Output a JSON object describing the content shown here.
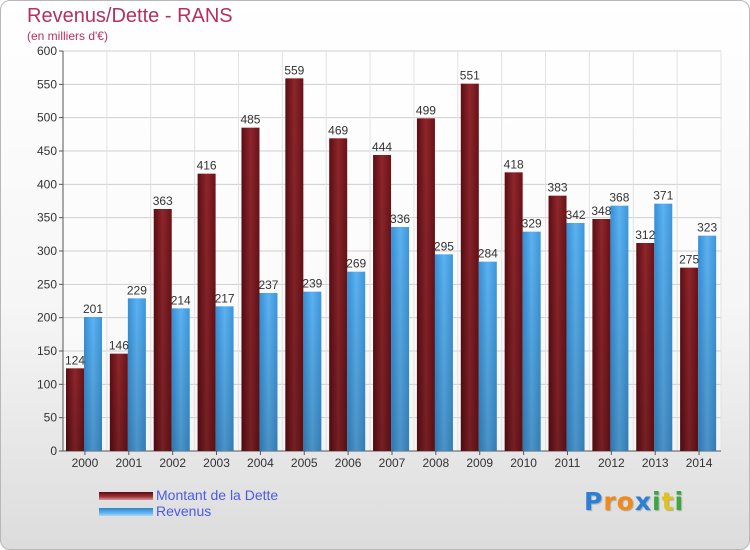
{
  "header": {
    "title": "Revenus/Dette - RANS",
    "subtitle": "(en milliers d'€)"
  },
  "logo": {
    "letters": [
      "P",
      "r",
      "o",
      "x",
      "i",
      "t",
      "i"
    ],
    "colors": [
      "#2b7fd4",
      "#f08a1c",
      "#f08a1c",
      "#2b7fd4",
      "#3aa83a",
      "#e0c21a",
      "#3aa83a"
    ]
  },
  "chart_data": {
    "type": "bar",
    "title": "Revenus/Dette - RANS",
    "subtitle": "(en milliers d'€)",
    "categories": [
      "2000",
      "2001",
      "2002",
      "2003",
      "2004",
      "2005",
      "2006",
      "2007",
      "2008",
      "2009",
      "2010",
      "2011",
      "2012",
      "2013",
      "2014"
    ],
    "series": [
      {
        "name": "Montant de la Dette",
        "values": [
          124,
          146,
          363,
          416,
          485,
          559,
          469,
          444,
          499,
          551,
          418,
          383,
          348,
          312,
          275
        ],
        "color": "#7a1c22"
      },
      {
        "name": "Revenus",
        "values": [
          201,
          229,
          214,
          217,
          237,
          239,
          269,
          336,
          295,
          284,
          329,
          342,
          368,
          371,
          323
        ],
        "color": "#4aa3e6"
      }
    ],
    "ylim": [
      0,
      600
    ],
    "yticks": [
      0,
      50,
      100,
      150,
      200,
      250,
      300,
      350,
      400,
      450,
      500,
      550,
      600
    ],
    "grid": true,
    "legend": "bottom-left"
  }
}
